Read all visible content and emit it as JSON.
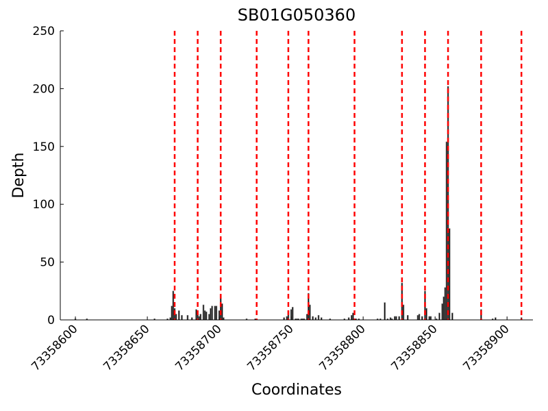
{
  "chart_data": {
    "type": "bar",
    "title": "SB01G050360",
    "xlabel": "Coordinates",
    "ylabel": "Depth",
    "color": "#111111",
    "edgecolor": "#777777",
    "x": [
      73358600,
      73358608,
      73358655,
      73358664,
      73358666,
      73358667,
      73358668,
      73358669,
      73358670,
      73358672,
      73358674,
      73358678,
      73358681,
      73358684,
      73358685,
      73358686,
      73358687,
      73358689,
      73358690,
      73358691,
      73358693,
      73358694,
      73358695,
      73358697,
      73358698,
      73358700,
      73358701,
      73358702,
      73358703,
      73358719,
      73358725,
      73358745,
      73358747,
      73358748,
      73358750,
      73358751,
      73358753,
      73358754,
      73358755,
      73358757,
      73358758,
      73358759,
      73358761,
      73358762,
      73358763,
      73358765,
      73358767,
      73358769,
      73358771,
      73358777,
      73358787,
      73358790,
      73358792,
      73358793,
      73358795,
      73358797,
      73358810,
      73358812,
      73358815,
      73358817,
      73358819,
      73358820,
      73358822,
      73358823,
      73358825,
      73358827,
      73358828,
      73358831,
      73358838,
      73358839,
      73358841,
      73358843,
      73358844,
      73358846,
      73358847,
      73358851,
      73358853,
      73358855,
      73358856,
      73358857,
      73358858,
      73358859,
      73358860,
      73358862,
      73358882,
      73358890,
      73358892,
      73358910
    ],
    "values": [
      1,
      1,
      1,
      1,
      2,
      12,
      25,
      10,
      5,
      8,
      4,
      4,
      2,
      9,
      5,
      3,
      5,
      13,
      8,
      7,
      5,
      10,
      12,
      12,
      12,
      8,
      22,
      14,
      2,
      1,
      1,
      2,
      3,
      8,
      9,
      11,
      1,
      1,
      1,
      1,
      1,
      1,
      5,
      23,
      13,
      3,
      2,
      4,
      2,
      1,
      1,
      2,
      4,
      6,
      1,
      1,
      1,
      1,
      15,
      1,
      2,
      1,
      3,
      3,
      3,
      32,
      13,
      4,
      4,
      5,
      3,
      25,
      10,
      3,
      3,
      1,
      6,
      14,
      20,
      28,
      154,
      202,
      79,
      6,
      9,
      1,
      2,
      2
    ],
    "vlines": {
      "color": "#ff0000",
      "style": "dashed",
      "x": [
        73358669,
        73358685,
        73358701,
        73358726,
        73358748,
        73358762,
        73358794,
        73358827,
        73358843,
        73358859,
        73358882,
        73358910
      ]
    },
    "xlim": [
      73358589.5,
      73358918
    ],
    "ylim": [
      0,
      250
    ],
    "xticks": [
      73358600,
      73358650,
      73358700,
      73358750,
      73358800,
      73358850,
      73358900
    ],
    "yticks": [
      0,
      50,
      100,
      150,
      200,
      250
    ]
  }
}
